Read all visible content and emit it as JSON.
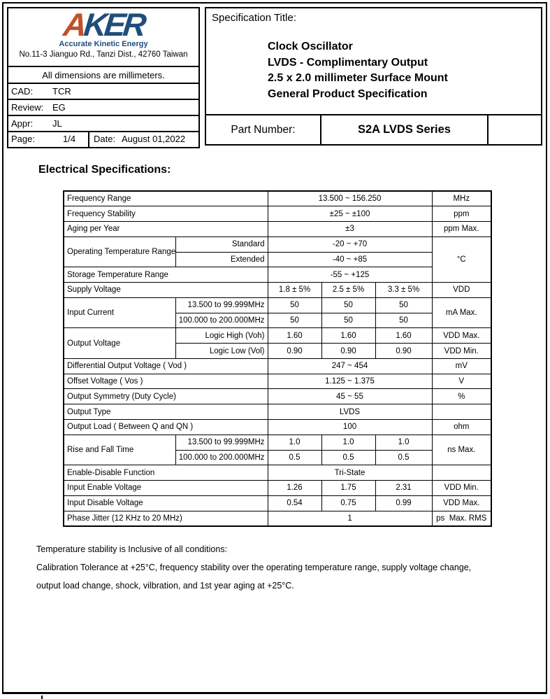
{
  "company": {
    "logo_a": "A",
    "logo_rest": "KER",
    "tagline": "Accurate Kinetic Energy",
    "address": "No.11-3 Jianguo Rd., Tanzi Dist., 42760 Taiwan"
  },
  "colors": {
    "logo_a": "#c1512a",
    "logo_rest": "#1f4e7c",
    "tagline": "#1f4e7c"
  },
  "info": {
    "dimensions_note": "All dimensions are millimeters.",
    "meta": [
      {
        "label": "CAD:",
        "value": "TCR"
      },
      {
        "label": "Review:",
        "value": "EG"
      },
      {
        "label": "Appr:",
        "value": "JL"
      }
    ],
    "page_label": "Page:",
    "page_value": "1/4",
    "date_label": "Date:",
    "date_value": "August 01,2022"
  },
  "title": {
    "spec_title_label": "Specification Title:",
    "lines": [
      "Clock Oscillator",
      "LVDS - Complimentary Output",
      "2.5 x 2.0 millimeter Surface Mount",
      "General Product Specification"
    ],
    "part_number_label": "Part Number:",
    "part_number_value": "S2A LVDS Series"
  },
  "section_heading": "Electrical Specifications:",
  "table": {
    "rows": [
      [
        {
          "t": "Frequency Range",
          "c": 2,
          "a": "label"
        },
        {
          "t": "13.500 ~ 156.250",
          "c": 3,
          "a": "val"
        },
        {
          "t": "MHz",
          "a": "unit"
        }
      ],
      [
        {
          "t": "Frequency Stability",
          "c": 2,
          "a": "label"
        },
        {
          "t": "±25 ~ ±100",
          "c": 3,
          "a": "val"
        },
        {
          "t": "ppm",
          "a": "unit"
        }
      ],
      [
        {
          "t": "Aging per Year",
          "c": 2,
          "a": "label"
        },
        {
          "t": "±3",
          "c": 3,
          "a": "val"
        },
        {
          "t": "ppm Max.",
          "a": "unit"
        }
      ],
      [
        {
          "t": "Operating Temperature Range",
          "r": 2,
          "a": "label"
        },
        {
          "t": "Standard",
          "a": "sub"
        },
        {
          "t": "-20 ~ +70",
          "c": 3,
          "a": "val"
        },
        {
          "t": "°C",
          "r": 3,
          "a": "unit"
        }
      ],
      [
        {
          "t": "Extended",
          "a": "sub"
        },
        {
          "t": "-40 ~ +85",
          "c": 3,
          "a": "val"
        }
      ],
      [
        {
          "t": "Storage Temperature Range",
          "c": 2,
          "a": "label"
        },
        {
          "t": "-55 ~ +125",
          "c": 3,
          "a": "val"
        }
      ],
      [
        {
          "t": "Supply Voltage",
          "c": 2,
          "a": "label"
        },
        {
          "t": "1.8 ± 5%",
          "a": "val"
        },
        {
          "t": "2.5 ± 5%",
          "a": "val"
        },
        {
          "t": "3.3 ± 5%",
          "a": "val"
        },
        {
          "t": "VDD",
          "a": "unit"
        }
      ],
      [
        {
          "t": "Input Current",
          "r": 2,
          "a": "label"
        },
        {
          "t": "13.500 to 99.999MHz",
          "a": "sub"
        },
        {
          "t": "50",
          "a": "val"
        },
        {
          "t": "50",
          "a": "val"
        },
        {
          "t": "50",
          "a": "val"
        },
        {
          "t": "mA Max.",
          "r": 2,
          "a": "unit"
        }
      ],
      [
        {
          "t": "100.000 to 200.000MHz",
          "a": "sub"
        },
        {
          "t": "50",
          "a": "val"
        },
        {
          "t": "50",
          "a": "val"
        },
        {
          "t": "50",
          "a": "val"
        }
      ],
      [
        {
          "t": "Output Voltage",
          "r": 2,
          "a": "label"
        },
        {
          "t": "Logic High (Voh)",
          "a": "sub"
        },
        {
          "t": "1.60",
          "a": "val"
        },
        {
          "t": "1.60",
          "a": "val"
        },
        {
          "t": "1.60",
          "a": "val"
        },
        {
          "t": "VDD Max.",
          "a": "unit"
        }
      ],
      [
        {
          "t": "Logic Low (Vol)",
          "a": "sub"
        },
        {
          "t": "0.90",
          "a": "val"
        },
        {
          "t": "0.90",
          "a": "val"
        },
        {
          "t": "0.90",
          "a": "val"
        },
        {
          "t": "VDD Min.",
          "a": "unit"
        }
      ],
      [
        {
          "t": "Differential Output Voltage ( Vod )",
          "c": 2,
          "a": "label"
        },
        {
          "t": "247 ~ 454",
          "c": 3,
          "a": "val"
        },
        {
          "t": "mV",
          "a": "unit"
        }
      ],
      [
        {
          "t": "Offset Voltage ( Vos )",
          "c": 2,
          "a": "label"
        },
        {
          "t": "1.125 ~ 1.375",
          "c": 3,
          "a": "val"
        },
        {
          "t": "V",
          "a": "unit"
        }
      ],
      [
        {
          "t": "Output Symmetry (Duty Cycle)",
          "c": 2,
          "a": "label"
        },
        {
          "t": "45 ~ 55",
          "c": 3,
          "a": "val"
        },
        {
          "t": "%",
          "a": "unit"
        }
      ],
      [
        {
          "t": "Output Type",
          "c": 2,
          "a": "label"
        },
        {
          "t": "LVDS",
          "c": 3,
          "a": "val"
        },
        {
          "t": "",
          "a": "unit"
        }
      ],
      [
        {
          "t": "Output Load ( Between Q and QN )",
          "c": 2,
          "a": "label"
        },
        {
          "t": "100",
          "c": 3,
          "a": "val"
        },
        {
          "t": "ohm",
          "a": "unit"
        }
      ],
      [
        {
          "t": "Rise and Fall Time",
          "r": 2,
          "a": "label"
        },
        {
          "t": "13.500 to 99.999MHz",
          "a": "sub"
        },
        {
          "t": "1.0",
          "a": "val"
        },
        {
          "t": "1.0",
          "a": "val"
        },
        {
          "t": "1.0",
          "a": "val"
        },
        {
          "t": "ns Max.",
          "r": 2,
          "a": "unit"
        }
      ],
      [
        {
          "t": "100.000 to 200.000MHz",
          "a": "sub"
        },
        {
          "t": "0.5",
          "a": "val"
        },
        {
          "t": "0.5",
          "a": "val"
        },
        {
          "t": "0.5",
          "a": "val"
        }
      ],
      [
        {
          "t": "Enable-Disable Function",
          "c": 2,
          "a": "label"
        },
        {
          "t": "Tri-State",
          "c": 3,
          "a": "val"
        },
        {
          "t": "",
          "a": "unit"
        }
      ],
      [
        {
          "t": "Input Enable Voltage",
          "c": 2,
          "a": "label"
        },
        {
          "t": "1.26",
          "a": "val"
        },
        {
          "t": "1.75",
          "a": "val"
        },
        {
          "t": "2.31",
          "a": "val"
        },
        {
          "t": "VDD Min.",
          "a": "unit"
        }
      ],
      [
        {
          "t": "Input Disable Voltage",
          "c": 2,
          "a": "label"
        },
        {
          "t": "0.54",
          "a": "val"
        },
        {
          "t": "0.75",
          "a": "val"
        },
        {
          "t": "0.99",
          "a": "val"
        },
        {
          "t": "VDD Max.",
          "a": "unit"
        }
      ],
      [
        {
          "t": "Phase Jitter (12 KHz to 20 MHz)",
          "c": 2,
          "a": "label"
        },
        {
          "t": "1",
          "c": 3,
          "a": "val"
        },
        {
          "t": "ps  Max. RMS",
          "a": "unit"
        }
      ]
    ]
  },
  "footnote": {
    "lines": [
      "Temperature stability is Inclusive of all conditions:",
      "Calibration Tolerance at +25°C, frequency stability over the operating temperature range, supply voltage change,",
      "output load change, shock, vilbration, and 1st year aging at +25°C."
    ]
  }
}
